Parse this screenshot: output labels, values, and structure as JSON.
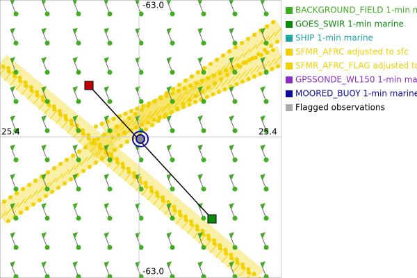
{
  "axis_labels": {
    "top": "-63.0",
    "bottom": "-63.0",
    "left": "25.4",
    "right": "25.4"
  },
  "legend": [
    {
      "label": "BACKGROUND_FIELD 1-min m",
      "color": "#3fae1f"
    },
    {
      "label": "GOES_SWIR 1-min marine",
      "color": "#0a8a0a"
    },
    {
      "label": "SHIP 1-min marine",
      "color": "#1fa5a0"
    },
    {
      "label": "SFMR_AFRC adjusted to sfc",
      "color": "#f2d100"
    },
    {
      "label": "SFMR_AFRC_FLAG adjusted to",
      "color": "#f2d100"
    },
    {
      "label": "GPSSONDE_WL150 1-min mar",
      "color": "#8a2fc0"
    },
    {
      "label": "MOORED_BUOY 1-min marine",
      "color": "#0a0aa0"
    },
    {
      "label": "Flagged observations",
      "color": "#aaaaaa",
      "text_color": "#000000"
    }
  ]
}
